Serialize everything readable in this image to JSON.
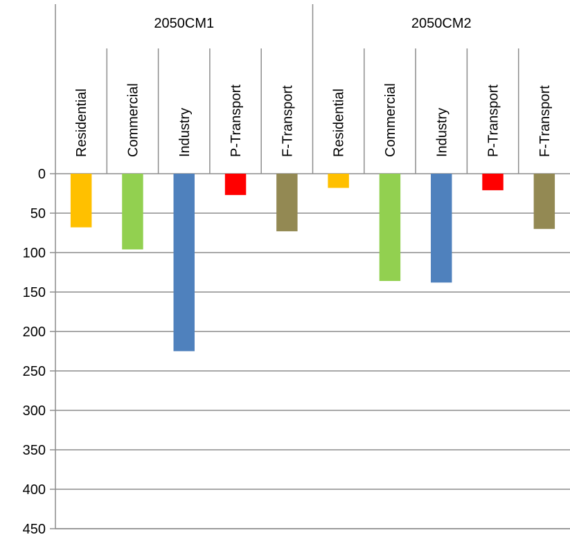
{
  "chart_data": {
    "type": "bar",
    "orientation": "vertical",
    "y_axis_inverted": true,
    "ylim": [
      0,
      450
    ],
    "yticks": [
      0,
      50,
      100,
      150,
      200,
      250,
      300,
      350,
      400,
      450
    ],
    "ytick_labels": [
      "0",
      "50",
      "100",
      "150",
      "200",
      "250",
      "300",
      "350",
      "400",
      "450"
    ],
    "grid": true,
    "title": "",
    "xlabel": "",
    "ylabel": "",
    "groups": [
      {
        "label": "2050CM1",
        "categories": [
          "Residential",
          "Commercial",
          "Industry",
          "P-Transport",
          "F-Transport"
        ],
        "values": [
          68,
          96,
          225,
          27,
          73
        ]
      },
      {
        "label": "2050CM2",
        "categories": [
          "Residential",
          "Commercial",
          "Industry",
          "P-Transport",
          "F-Transport"
        ],
        "values": [
          18,
          136,
          138,
          21,
          70
        ]
      }
    ],
    "category_colors": {
      "Residential": "#FFC000",
      "Commercial": "#92D050",
      "Industry": "#4F81BD",
      "P-Transport": "#FF0000",
      "F-Transport": "#938953"
    }
  }
}
